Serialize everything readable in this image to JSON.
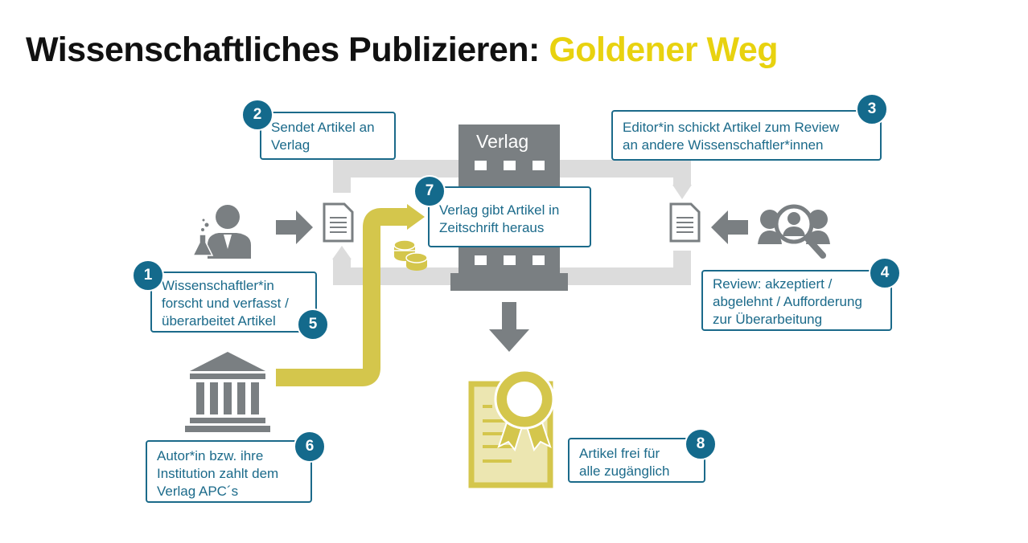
{
  "title": {
    "prefix": "Wissenschaftliches Publizieren:",
    "highlight": "Goldener Weg"
  },
  "colors": {
    "accent_blue": "#1b6a8a",
    "badge_blue": "#146a8c",
    "gold": "#d4c64c",
    "gray": "#7a7f82",
    "light_gray": "#dcdcdc",
    "title_highlight": "#e8d20f"
  },
  "building": {
    "label": "Verlag"
  },
  "steps": [
    {
      "number": "1",
      "lines": [
        "Wissenschaftler*in",
        "forscht und verfasst /",
        "überarbeitet Artikel"
      ]
    },
    {
      "number": "2",
      "lines": [
        "Sendet Artikel an",
        "Verlag"
      ]
    },
    {
      "number": "3",
      "lines": [
        "Editor*in schickt Artikel zum Review",
        "an andere Wissenschaftler*innen"
      ]
    },
    {
      "number": "4",
      "lines": [
        "Review: akzeptiert /",
        "abgelehnt / Aufforderung",
        "zur Überarbeitung"
      ]
    },
    {
      "number": "5"
    },
    {
      "number": "6",
      "lines": [
        "Autor*in bzw. ihre",
        "Institution zahlt dem",
        "Verlag APC´s"
      ]
    },
    {
      "number": "7",
      "lines": [
        "Verlag gibt Artikel in",
        "Zeitschrift heraus"
      ]
    },
    {
      "number": "8",
      "lines": [
        "Artikel frei für",
        "alle zugänglich"
      ]
    }
  ],
  "icons": [
    "scientist-icon",
    "document-icon",
    "publisher-building-icon",
    "reviewers-icon",
    "institution-icon",
    "coins-icon",
    "certificate-icon",
    "arrow-icon"
  ]
}
